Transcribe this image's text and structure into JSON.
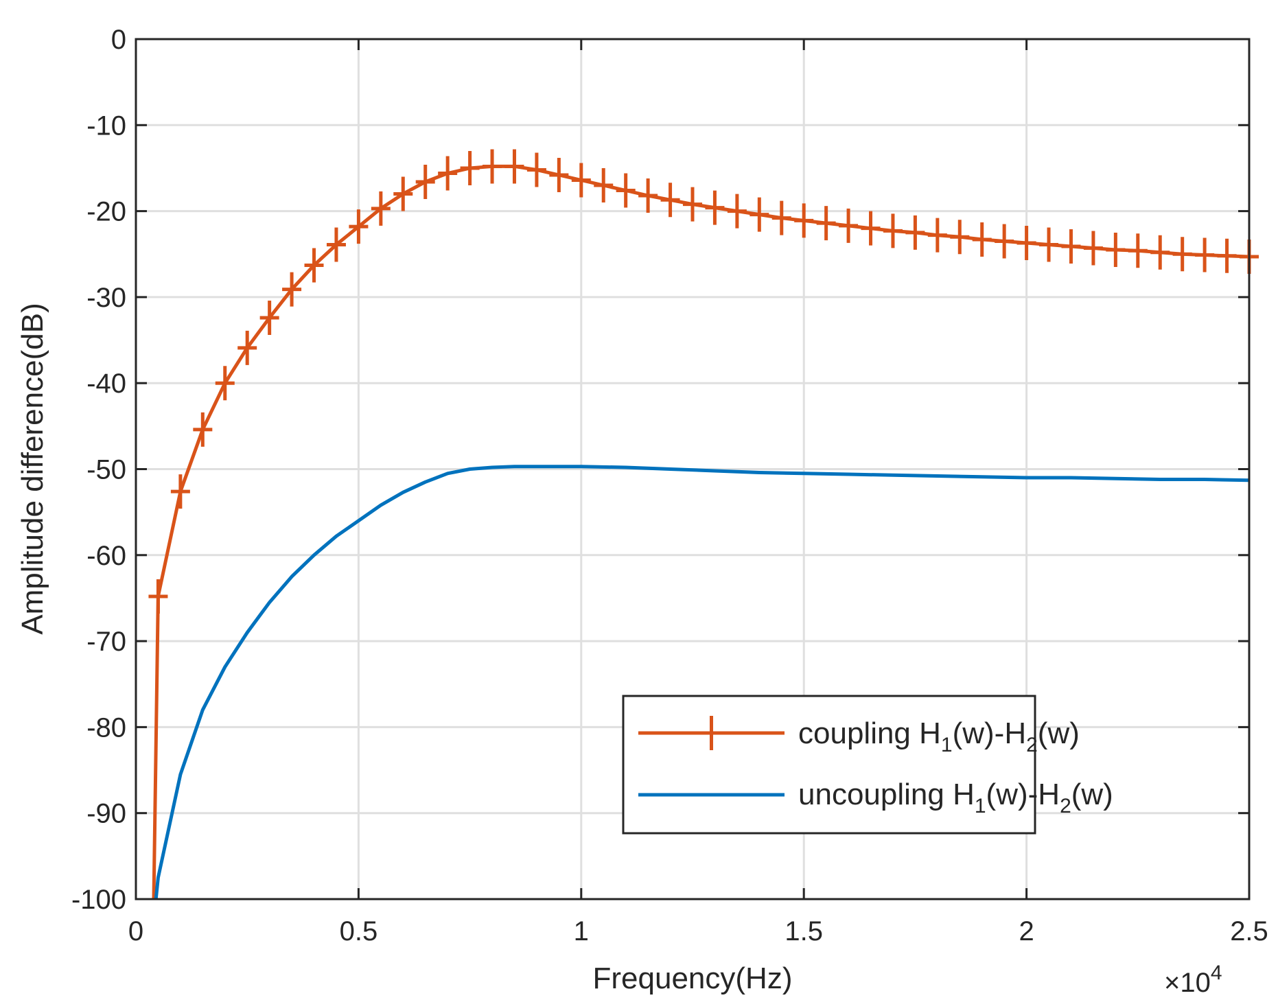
{
  "chart_data": {
    "type": "line",
    "title": "",
    "xlabel": "Frequency(Hz)",
    "ylabel": "Amplitude difference(dB)",
    "x_exponent_base": "10",
    "x_exponent_power": "4",
    "xlim": [
      0,
      2.5
    ],
    "ylim": [
      -100,
      0
    ],
    "xticks": [
      "0",
      "0.5",
      "1",
      "1.5",
      "2",
      "2.5"
    ],
    "yticks": [
      "0",
      "-10",
      "-20",
      "-30",
      "-40",
      "-50",
      "-60",
      "-70",
      "-80",
      "-90",
      "-100"
    ],
    "grid": true,
    "legend_position": "bottom-right",
    "series": [
      {
        "name": "coupling H1(w)-H2(w)",
        "legend_prefix": "coupling H",
        "legend_sub1": "1",
        "legend_mid": "(w)-H",
        "legend_sub2": "2",
        "legend_suffix": "(w)",
        "color": "#D95319",
        "marker": "plus",
        "x": [
          0.04,
          0.05,
          0.1,
          0.15,
          0.2,
          0.25,
          0.3,
          0.35,
          0.4,
          0.45,
          0.5,
          0.55,
          0.6,
          0.65,
          0.7,
          0.75,
          0.8,
          0.85,
          0.9,
          0.95,
          1.0,
          1.05,
          1.1,
          1.15,
          1.2,
          1.25,
          1.3,
          1.35,
          1.4,
          1.45,
          1.5,
          1.55,
          1.6,
          1.65,
          1.7,
          1.75,
          1.8,
          1.85,
          1.9,
          1.95,
          2.0,
          2.05,
          2.1,
          2.15,
          2.2,
          2.25,
          2.3,
          2.35,
          2.4,
          2.45,
          2.5
        ],
        "y": [
          -100,
          -64.8,
          -52.6,
          -45.4,
          -40.0,
          -35.9,
          -32.4,
          -29.1,
          -26.3,
          -23.9,
          -21.8,
          -19.7,
          -18.0,
          -16.6,
          -15.6,
          -15.0,
          -14.8,
          -14.8,
          -15.2,
          -15.8,
          -16.4,
          -17.0,
          -17.6,
          -18.2,
          -18.7,
          -19.2,
          -19.6,
          -20.0,
          -20.4,
          -20.8,
          -21.1,
          -21.4,
          -21.7,
          -22.0,
          -22.3,
          -22.5,
          -22.8,
          -23.0,
          -23.3,
          -23.5,
          -23.7,
          -23.9,
          -24.1,
          -24.3,
          -24.5,
          -24.6,
          -24.8,
          -25.0,
          -25.1,
          -25.2,
          -25.3
        ],
        "marker_start_index": 1
      },
      {
        "name": "uncoupling H1(w)-H2(w)",
        "legend_prefix": "uncoupling H",
        "legend_sub1": "1",
        "legend_mid": "(w)-H",
        "legend_sub2": "2",
        "legend_suffix": "(w)",
        "color": "#0072BD",
        "marker": "none",
        "x": [
          0.045,
          0.05,
          0.1,
          0.15,
          0.2,
          0.25,
          0.3,
          0.35,
          0.4,
          0.45,
          0.5,
          0.55,
          0.6,
          0.65,
          0.7,
          0.75,
          0.8,
          0.85,
          0.9,
          0.95,
          1.0,
          1.1,
          1.2,
          1.3,
          1.4,
          1.5,
          1.6,
          1.7,
          1.8,
          1.9,
          2.0,
          2.1,
          2.2,
          2.3,
          2.4,
          2.5
        ],
        "y": [
          -100,
          -97.5,
          -85.5,
          -78.0,
          -73.0,
          -69.0,
          -65.5,
          -62.5,
          -60.0,
          -57.8,
          -56.0,
          -54.2,
          -52.7,
          -51.5,
          -50.5,
          -50.0,
          -49.8,
          -49.7,
          -49.7,
          -49.7,
          -49.7,
          -49.8,
          -50.0,
          -50.2,
          -50.4,
          -50.5,
          -50.6,
          -50.7,
          -50.8,
          -50.9,
          -51.0,
          -51.0,
          -51.1,
          -51.2,
          -51.2,
          -51.3
        ]
      }
    ]
  }
}
